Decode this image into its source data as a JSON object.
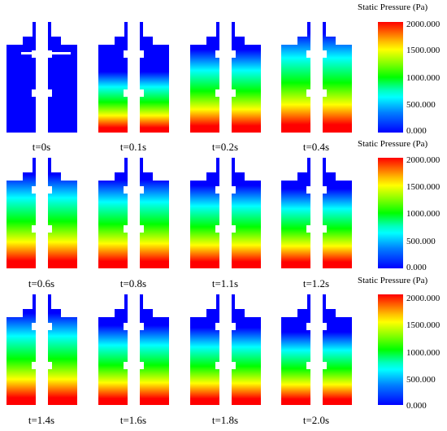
{
  "panels": [
    {
      "time_label": "t=0s",
      "pressure_rise": 0.0
    },
    {
      "time_label": "t=0.1s",
      "pressure_rise": 0.55
    },
    {
      "time_label": "t=0.2s",
      "pressure_rise": 0.75
    },
    {
      "time_label": "t=0.4s",
      "pressure_rise": 0.9
    },
    {
      "time_label": "t=0.6s",
      "pressure_rise": 0.85
    },
    {
      "time_label": "t=0.8s",
      "pressure_rise": 0.8
    },
    {
      "time_label": "t=1.1s",
      "pressure_rise": 0.75
    },
    {
      "time_label": "t=1.2s",
      "pressure_rise": 0.72
    },
    {
      "time_label": "t=1.4s",
      "pressure_rise": 0.83
    },
    {
      "time_label": "t=1.6s",
      "pressure_rise": 0.72
    },
    {
      "time_label": "t=1.8s",
      "pressure_rise": 0.7
    },
    {
      "time_label": "t=2.0s",
      "pressure_rise": 0.66
    }
  ],
  "colorbars": [
    {
      "title": "Static Pressure (Pa)",
      "ticks": [
        "2000.000",
        "1500.000",
        "1000.000",
        "500.000",
        "0.000"
      ]
    },
    {
      "title": "Static Pressure (Pa)",
      "ticks": [
        "2000.000",
        "1500.000",
        "1000.000",
        "500.000",
        "0.000"
      ]
    },
    {
      "title": "Static Pressure (Pa)",
      "ticks": [
        "2000.000",
        "1500.000",
        "1000.000",
        "500.000",
        "0.000"
      ]
    }
  ],
  "colors": {
    "low": "#0000ff",
    "cyan": "#00ffff",
    "mid": "#00ff00",
    "yellow": "#ffff00",
    "high": "#ff0000"
  }
}
